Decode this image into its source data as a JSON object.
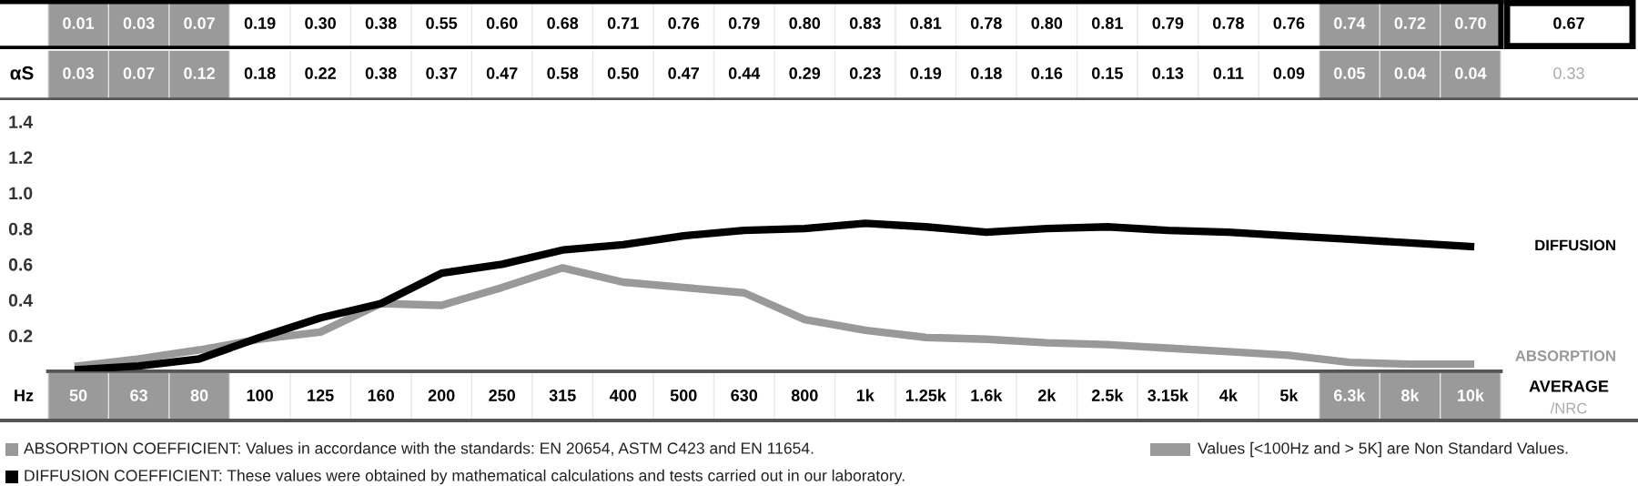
{
  "chart_data": {
    "type": "line",
    "categories": [
      "50",
      "63",
      "80",
      "100",
      "125",
      "160",
      "200",
      "250",
      "315",
      "400",
      "500",
      "630",
      "800",
      "1k",
      "1.25k",
      "1.6k",
      "2k",
      "2.5k",
      "3.15k",
      "4k",
      "5k",
      "6.3k",
      "8k",
      "10k"
    ],
    "xlabel": "Hz",
    "series": [
      {
        "name": "DIFFUSION",
        "color": "#000000",
        "values": [
          0.01,
          0.03,
          0.07,
          0.19,
          0.3,
          0.38,
          0.55,
          0.6,
          0.68,
          0.71,
          0.76,
          0.79,
          0.8,
          0.83,
          0.81,
          0.78,
          0.8,
          0.81,
          0.79,
          0.78,
          0.76,
          0.74,
          0.72,
          0.7
        ],
        "value_labels": [
          "0.01",
          "0.03",
          "0.07",
          "0.19",
          "0.30",
          "0.38",
          "0.55",
          "0.60",
          "0.68",
          "0.71",
          "0.76",
          "0.79",
          "0.80",
          "0.83",
          "0.81",
          "0.78",
          "0.80",
          "0.81",
          "0.79",
          "0.78",
          "0.76",
          "0.74",
          "0.72",
          "0.70"
        ]
      },
      {
        "name": "ABSORPTION",
        "color": "#999999",
        "values": [
          0.03,
          0.07,
          0.12,
          0.18,
          0.22,
          0.38,
          0.37,
          0.47,
          0.58,
          0.5,
          0.47,
          0.44,
          0.29,
          0.23,
          0.19,
          0.18,
          0.16,
          0.15,
          0.13,
          0.11,
          0.09,
          0.05,
          0.04,
          0.04
        ],
        "value_labels": [
          "0.03",
          "0.07",
          "0.12",
          "0.18",
          "0.22",
          "0.38",
          "0.37",
          "0.47",
          "0.58",
          "0.50",
          "0.47",
          "0.44",
          "0.29",
          "0.23",
          "0.19",
          "0.18",
          "0.16",
          "0.15",
          "0.13",
          "0.11",
          "0.09",
          "0.05",
          "0.04",
          "0.04"
        ]
      }
    ],
    "ylim": [
      0,
      1.5
    ],
    "yticks": [
      0.2,
      0.4,
      0.6,
      0.8,
      {
        "value": 1,
        "label": "1.0"
      },
      1.2,
      1.4
    ],
    "annotations": [
      "αS",
      "AVERAGE",
      "/NRC",
      "0.67",
      "0.33",
      "ABSORPTION COEFFICIENT: Values in accordance with the standards: EN 20654, ASTM C423 and EN 11654.",
      "DIFFUSION COEFFICIENT: These values were obtained by mathematical calculations and tests carried out in our laboratory.",
      "Values [<100Hz and > 5K] are Non Standard Values."
    ],
    "grid": false,
    "legend": false,
    "marker": "none",
    "line_style": "solid"
  }
}
